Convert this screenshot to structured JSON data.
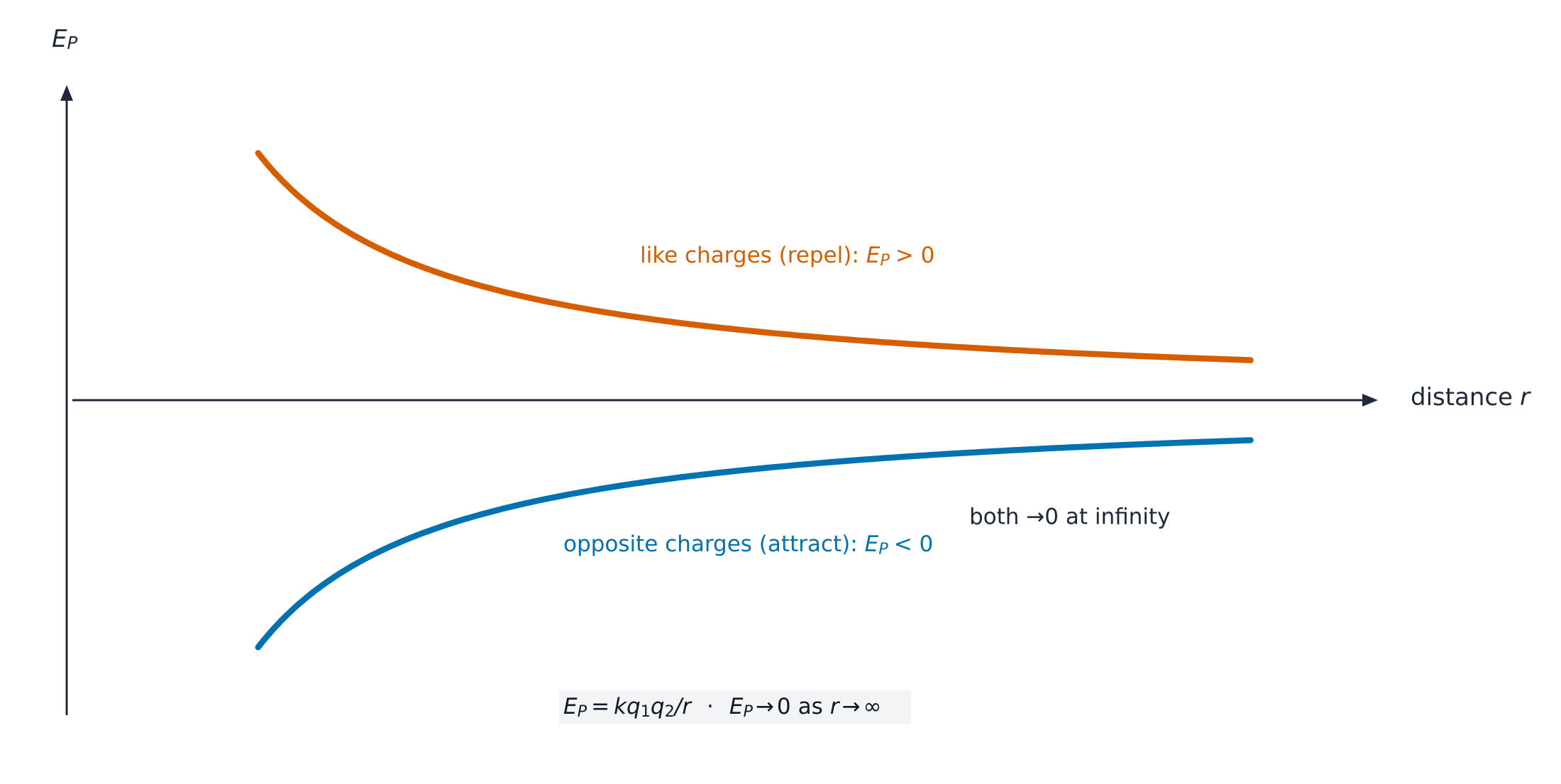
{
  "y_axis_label": {
    "symbol": "E",
    "subscript": "P"
  },
  "x_axis_label": {
    "text": "distance",
    "symbol": "r"
  },
  "like_label": {
    "text": "like charges (repel):",
    "symbol": "E",
    "subscript": "P",
    "relation": "> 0"
  },
  "opposite_label": {
    "text": "opposite charges (attract):",
    "symbol": "E",
    "subscript": "P",
    "relation": "< 0"
  },
  "limit_note": "both →0 at infinity",
  "formula": [
    "E",
    "P",
    "=",
    "kq",
    "1",
    "q",
    "2",
    "/r",
    "·",
    "E",
    "P",
    "→",
    "0",
    "as",
    "r",
    "→",
    "∞"
  ]
}
